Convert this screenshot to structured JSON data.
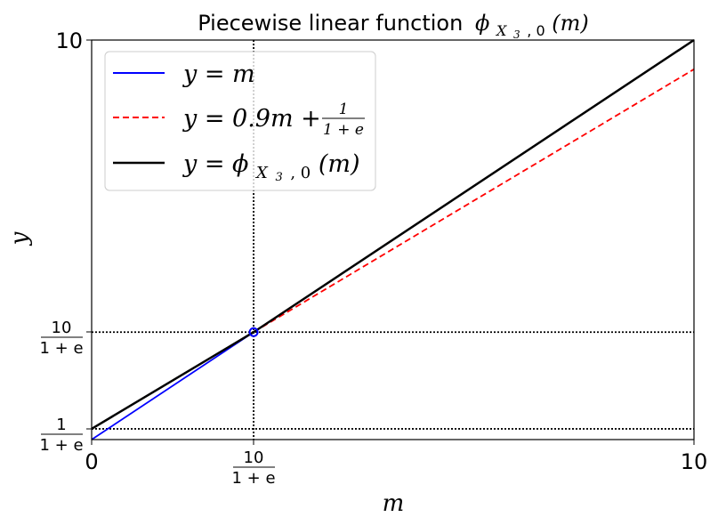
{
  "chart_data": {
    "type": "line",
    "title": "Piecewise linear function",
    "title_math": "ϕ",
    "title_sub": "X",
    "title_subsub": "3",
    "title_sub_rest": ", 0",
    "title_arg": "(m)",
    "xlabel": "m",
    "ylabel": "y",
    "xlim": [
      0,
      10
    ],
    "ylim": [
      0,
      10
    ],
    "e": 2.718281828,
    "kink_x": 2.6894,
    "kink_y": 2.6894,
    "x_tick_labels": {
      "t0": "0",
      "t10": "10",
      "t_kink_num": "10",
      "t_kink_den": "1 + e"
    },
    "y_tick_labels": {
      "t10": "10",
      "t_kink_num": "10",
      "t_kink_den": "1 + e",
      "t_low_num": "1",
      "t_low_den": "1 + e"
    },
    "reference_lines": [
      {
        "axis": "x",
        "value": 2.6894,
        "style": "dotted",
        "color": "#000000"
      },
      {
        "axis": "y",
        "value": 2.6894,
        "style": "dotted",
        "color": "#000000"
      },
      {
        "axis": "y",
        "value": 0.2689,
        "style": "dotted",
        "color": "#000000"
      }
    ],
    "series": [
      {
        "key": "identity",
        "label": "y = m",
        "color": "#0000ff",
        "style": "solid",
        "x": [
          0,
          2.6894
        ],
        "y": [
          0,
          2.6894
        ]
      },
      {
        "key": "scaled",
        "label_prefix": "y = 0.9m + ",
        "label_num": "1",
        "label_den": "1 + e",
        "color": "#ff0000",
        "style": "dashed",
        "x": [
          2.6894,
          10
        ],
        "y": [
          2.6894,
          9.2689
        ]
      },
      {
        "key": "phi",
        "label_prefix": "y = ",
        "label_phi": "ϕ",
        "label_sub": "X",
        "label_subsub": "3",
        "label_sub_rest": ", 0",
        "label_arg": "(m)",
        "color": "#000000",
        "style": "solid",
        "x": [
          0,
          2.6894,
          10
        ],
        "y": [
          0.2689,
          2.6894,
          10
        ]
      }
    ],
    "markers": [
      {
        "x": 2.6894,
        "y": 2.6894,
        "color": "#0000ff",
        "shape": "circle-open"
      }
    ],
    "legend_position": "top-left",
    "grid": false
  }
}
